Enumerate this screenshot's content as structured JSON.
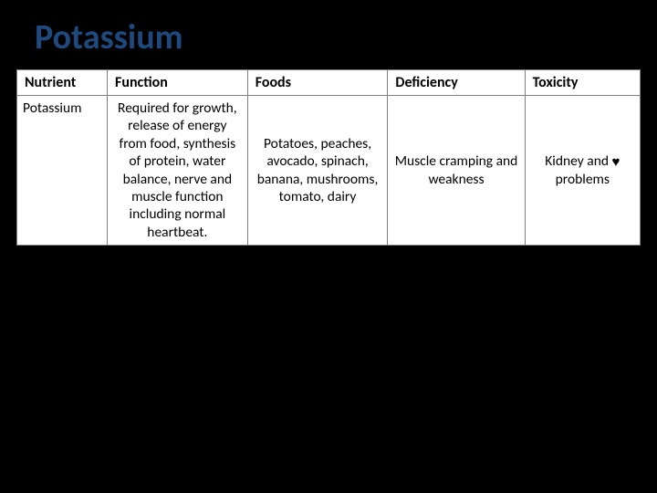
{
  "title": "Potassium",
  "table": {
    "headers": {
      "nutrient": "Nutrient",
      "function": "Function",
      "foods": "Foods",
      "deficiency": "Deficiency",
      "toxicity": "Toxicity"
    },
    "row": {
      "nutrient": "Potassium",
      "function": "Required for growth, release of energy from food, synthesis of protein, water balance, nerve and muscle function including normal heartbeat.",
      "foods": "Potatoes, peaches, avocado, spinach, banana, mushrooms, tomato, dairy",
      "deficiency": "Muscle cramping and weakness",
      "toxicity_prefix": "Kidney and ",
      "toxicity_icon": "♥",
      "toxicity_suffix": " problems"
    }
  },
  "colors": {
    "background": "#000000",
    "title": "#1f497d",
    "cell_bg": "#ffffff",
    "border": "#808080",
    "text": "#000000"
  }
}
